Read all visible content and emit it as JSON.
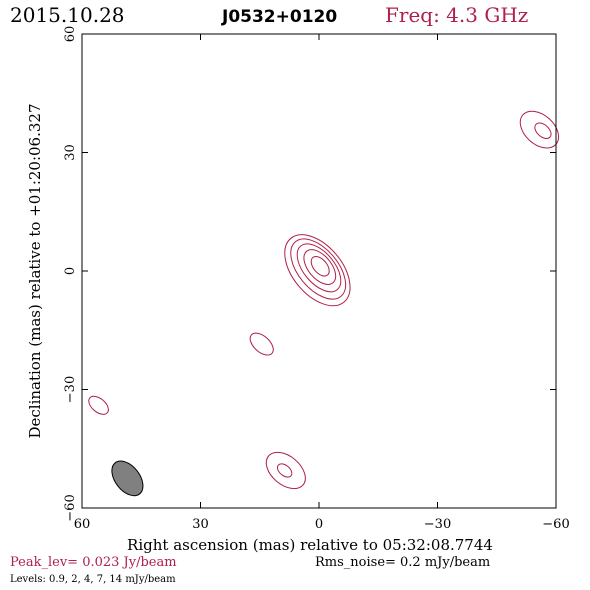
{
  "header": {
    "date": "2015.10.28",
    "source": "J0532+0120",
    "freq": "Freq: 4.3 GHz"
  },
  "footer": {
    "peak": "Peak_lev=  0.023 Jy/beam",
    "rms": "Rms_noise=   0.2 mJy/beam",
    "levels": "Levels: 0.9,    2,    4,    7,   14 mJy/beam"
  },
  "colors": {
    "contour": "#b0204a",
    "beam_fill": "#808080",
    "axis": "#000000"
  },
  "chart_data": {
    "type": "contour",
    "title": "J0532+0120",
    "xlabel": "Right ascension (mas) relative to 05:32:08.7744",
    "ylabel": "Declination (mas) relative to +01:20:06.327",
    "xlim": [
      60,
      -60
    ],
    "ylim": [
      -60,
      60
    ],
    "xticks": [
      60,
      30,
      0,
      -30,
      -60
    ],
    "yticks": [
      -60,
      -30,
      0,
      30,
      60
    ],
    "xtick_labels": [
      "60",
      "30",
      "0",
      "−30",
      "−60"
    ],
    "ytick_labels": [
      "−60",
      "−30",
      "0",
      "30",
      "60"
    ],
    "levels_mJy_per_beam": [
      0.9,
      2,
      4,
      7,
      14
    ],
    "peak_Jy_per_beam": 0.023,
    "rms_mJy_per_beam": 0.2,
    "contours": [
      {
        "x": 0.4,
        "y": 0.2,
        "a": 10.5,
        "b": 6.2,
        "pa_deg": -40
      },
      {
        "x": 0.2,
        "y": 0.5,
        "a": 9.0,
        "b": 5.0,
        "pa_deg": -40
      },
      {
        "x": 0.0,
        "y": 0.8,
        "a": 7.2,
        "b": 3.9,
        "pa_deg": -40
      },
      {
        "x": -0.2,
        "y": 1.0,
        "a": 5.2,
        "b": 2.9,
        "pa_deg": -40
      },
      {
        "x": -0.3,
        "y": 1.2,
        "a": 2.9,
        "b": 1.7,
        "pa_deg": -40
      },
      {
        "x": -55.8,
        "y": 35.8,
        "a": 5.6,
        "b": 3.7,
        "pa_deg": -48
      },
      {
        "x": -56.7,
        "y": 35.5,
        "a": 2.4,
        "b": 1.5,
        "pa_deg": -48
      },
      {
        "x": 14.5,
        "y": -18.5,
        "a": 3.5,
        "b": 2.0,
        "pa_deg": -48
      },
      {
        "x": 55.8,
        "y": -34.0,
        "a": 2.9,
        "b": 1.7,
        "pa_deg": -50
      },
      {
        "x": 8.4,
        "y": -50.5,
        "a": 5.7,
        "b": 3.6,
        "pa_deg": -50
      },
      {
        "x": 8.7,
        "y": -50.5,
        "a": 2.1,
        "b": 1.3,
        "pa_deg": -50
      }
    ],
    "beam": {
      "x": 48.5,
      "y": -52.5,
      "major_mas": 10.0,
      "minor_mas": 6.2,
      "pa_deg": -38
    }
  }
}
